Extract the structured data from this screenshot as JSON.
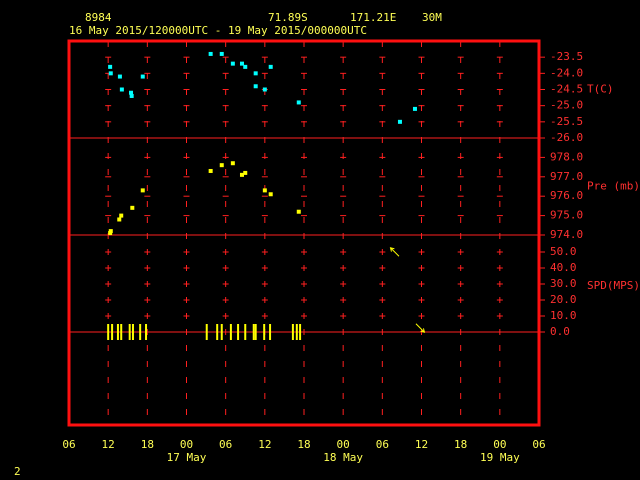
{
  "header": {
    "station": "8984",
    "lat": "71.89S",
    "lon": "171.21E",
    "elev": "30M",
    "period": "16 May 2015/120000UTC - 19 May 2015/000000UTC"
  },
  "page_number": "2",
  "x_axis": {
    "xlim": [
      0,
      72
    ],
    "xticks": [
      {
        "value": 0,
        "label": "06"
      },
      {
        "value": 6,
        "label": "12"
      },
      {
        "value": 12,
        "label": "18"
      },
      {
        "value": 18,
        "label": "00"
      },
      {
        "value": 24,
        "label": "06"
      },
      {
        "value": 30,
        "label": "12"
      },
      {
        "value": 36,
        "label": "18"
      },
      {
        "value": 42,
        "label": "00"
      },
      {
        "value": 48,
        "label": "06"
      },
      {
        "value": 54,
        "label": "12"
      },
      {
        "value": 60,
        "label": "18"
      },
      {
        "value": 66,
        "label": "00"
      },
      {
        "value": 72,
        "label": "06"
      }
    ],
    "date_labels": [
      {
        "value": 18,
        "label": "17 May"
      },
      {
        "value": 42,
        "label": "18 May"
      },
      {
        "value": 66,
        "label": "19 May"
      }
    ]
  },
  "chart_data": [
    {
      "type": "scatter",
      "y_label": "T(C)",
      "color": "#00ffff",
      "x": [
        6.3,
        6.4,
        7.8,
        8.1,
        9.5,
        9.6,
        11.3,
        21.7,
        23.4,
        25.1,
        26.5,
        27.0,
        28.6,
        28.6,
        30.0,
        30.9,
        35.2,
        50.7,
        53.0
      ],
      "values": [
        -23.8,
        -24.0,
        -24.1,
        -24.5,
        -24.6,
        -24.7,
        -24.1,
        -23.4,
        -23.4,
        -23.7,
        -23.7,
        -23.8,
        -24.0,
        -24.4,
        -24.5,
        -23.8,
        -24.9,
        -25.5,
        -25.1
      ],
      "ylim": [
        -26,
        -23
      ],
      "yticks": [
        -23.5,
        {
          "value": -24,
          "label": "-24.0"
        },
        -24.5,
        {
          "value": -25,
          "label": "-25.0"
        },
        -25.5,
        {
          "value": -26,
          "label": "-26.0"
        }
      ]
    },
    {
      "type": "scatter",
      "y_label": "Pre (mb)",
      "color": "#ffff00",
      "x": [
        6.3,
        6.4,
        7.7,
        8.0,
        9.7,
        11.3,
        21.7,
        23.4,
        25.1,
        26.5,
        27.0,
        30.0,
        30.9,
        35.2
      ],
      "values": [
        974.1,
        974.2,
        974.8,
        975.0,
        975.4,
        976.3,
        977.3,
        977.6,
        977.7,
        977.1,
        977.2,
        976.3,
        976.1,
        975.2
      ],
      "ylim": [
        974,
        979
      ],
      "yticks": [
        {
          "value": 974,
          "label": "974.0"
        },
        {
          "value": 975,
          "label": "975.0"
        },
        {
          "value": 976,
          "label": "976.0"
        },
        {
          "value": 977,
          "label": "977.0"
        },
        {
          "value": 978,
          "label": "978.0"
        }
      ]
    },
    {
      "type": "wind",
      "y_label": "SPD(MPS)",
      "color": "#ffff00",
      "x": [
        6.0,
        6.6,
        7.5,
        8.0,
        9.3,
        9.8,
        10.9,
        11.8,
        21.1,
        22.7,
        23.4,
        24.8,
        25.9,
        27.0,
        28.3,
        28.6,
        29.9,
        30.8,
        34.3,
        34.9,
        35.4,
        49.9,
        53.8
      ],
      "values": [
        0,
        0,
        0,
        0,
        0,
        0,
        0,
        0,
        0,
        0,
        0,
        0,
        0,
        0,
        0,
        0,
        0,
        0,
        0,
        0,
        0,
        50,
        2.5
      ],
      "direction": [
        null,
        null,
        null,
        null,
        null,
        null,
        null,
        null,
        null,
        null,
        null,
        null,
        null,
        null,
        null,
        null,
        null,
        null,
        null,
        null,
        null,
        135,
        315
      ],
      "ylim": [
        0,
        60
      ],
      "yticks": [
        {
          "value": 0,
          "label": "0.0"
        },
        {
          "value": 10,
          "label": "10.0"
        },
        {
          "value": 20,
          "label": "20.0"
        },
        {
          "value": 30,
          "label": "30.0"
        },
        {
          "value": 40,
          "label": "40.0"
        },
        {
          "value": 50,
          "label": "50.0"
        }
      ]
    }
  ]
}
